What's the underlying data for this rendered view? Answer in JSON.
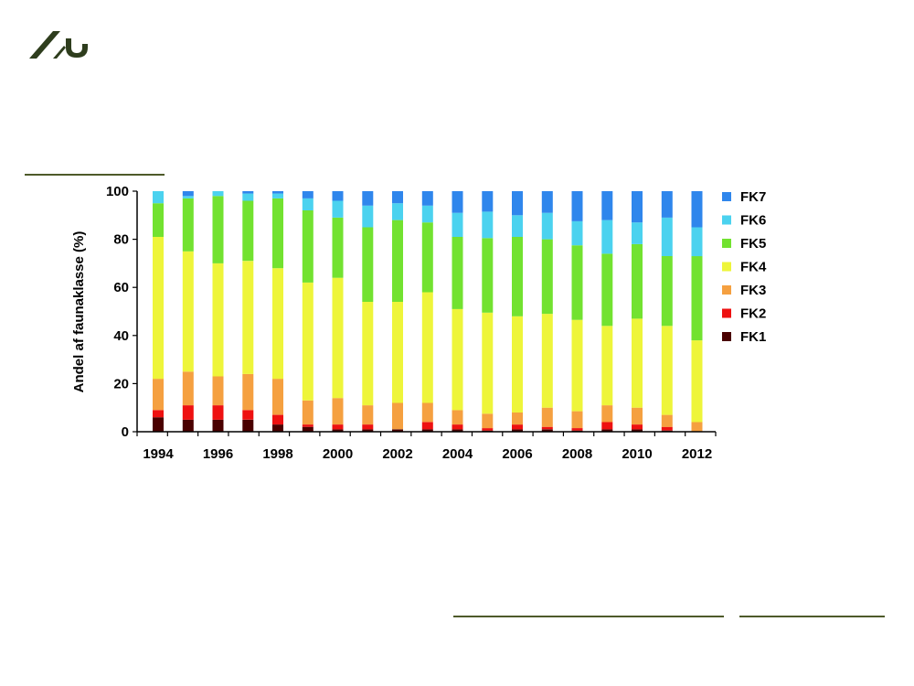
{
  "colors": {
    "FK1": "#4a0000",
    "FK2": "#ee1111",
    "FK3": "#f5a040",
    "FK4": "#eef53a",
    "FK5": "#72e230",
    "FK6": "#4bd2ef",
    "FK7": "#2f86ec",
    "brand": "#2e3d1d",
    "rule": "#4e5a2a"
  },
  "logo": {
    "icon": "au-logo-icon"
  },
  "chart_data": {
    "type": "bar",
    "stacked": true,
    "xlabel": "",
    "ylabel": "Andel af faunaklasse (%)",
    "ylim": [
      0,
      100
    ],
    "yticks": [
      "0",
      "20",
      "40",
      "60",
      "80",
      "100"
    ],
    "xtick_labels": [
      "1994",
      "1996",
      "1998",
      "2000",
      "2002",
      "2004",
      "2006",
      "2008",
      "2010",
      "2012"
    ],
    "categories": [
      "1994",
      "1995",
      "1996",
      "1997",
      "1998",
      "1999",
      "2000",
      "2001",
      "2002",
      "2003",
      "2004",
      "2005",
      "2006",
      "2007",
      "2008",
      "2009",
      "2010",
      "2011",
      "2012"
    ],
    "legend_position": "right",
    "grid": false,
    "series": [
      {
        "name": "FK1",
        "values": [
          6,
          5,
          5,
          5,
          3,
          2,
          1,
          1,
          1,
          1,
          1,
          0.5,
          1,
          1,
          0.5,
          1,
          1,
          0.5,
          0
        ]
      },
      {
        "name": "FK2",
        "values": [
          3,
          6,
          6,
          4,
          4,
          1,
          2,
          2,
          0,
          3,
          2,
          1,
          2,
          1,
          1,
          3,
          2,
          1.5,
          0
        ]
      },
      {
        "name": "FK3",
        "values": [
          13,
          14,
          12,
          15,
          15,
          10,
          11,
          8,
          11,
          8,
          6,
          6,
          5,
          8,
          7,
          7,
          7,
          5,
          4
        ]
      },
      {
        "name": "FK4",
        "values": [
          59,
          50,
          47,
          47,
          46,
          49,
          50,
          43,
          42,
          46,
          42,
          42,
          40,
          39,
          38,
          33,
          37,
          37,
          34
        ]
      },
      {
        "name": "FK5",
        "values": [
          14,
          22,
          28,
          25,
          29,
          30,
          25,
          31,
          34,
          29,
          30,
          31,
          33,
          31,
          31,
          30,
          31,
          29,
          35
        ]
      },
      {
        "name": "FK6",
        "values": [
          5,
          1,
          2,
          3,
          2,
          5,
          7,
          9,
          7,
          7,
          10,
          11,
          9,
          11,
          10,
          14,
          9,
          16,
          12
        ]
      },
      {
        "name": "FK7",
        "values": [
          0,
          2,
          0,
          1,
          1,
          3,
          4,
          6,
          5,
          6,
          9,
          8.5,
          10,
          9,
          12.5,
          12,
          13,
          11,
          15
        ]
      }
    ]
  }
}
